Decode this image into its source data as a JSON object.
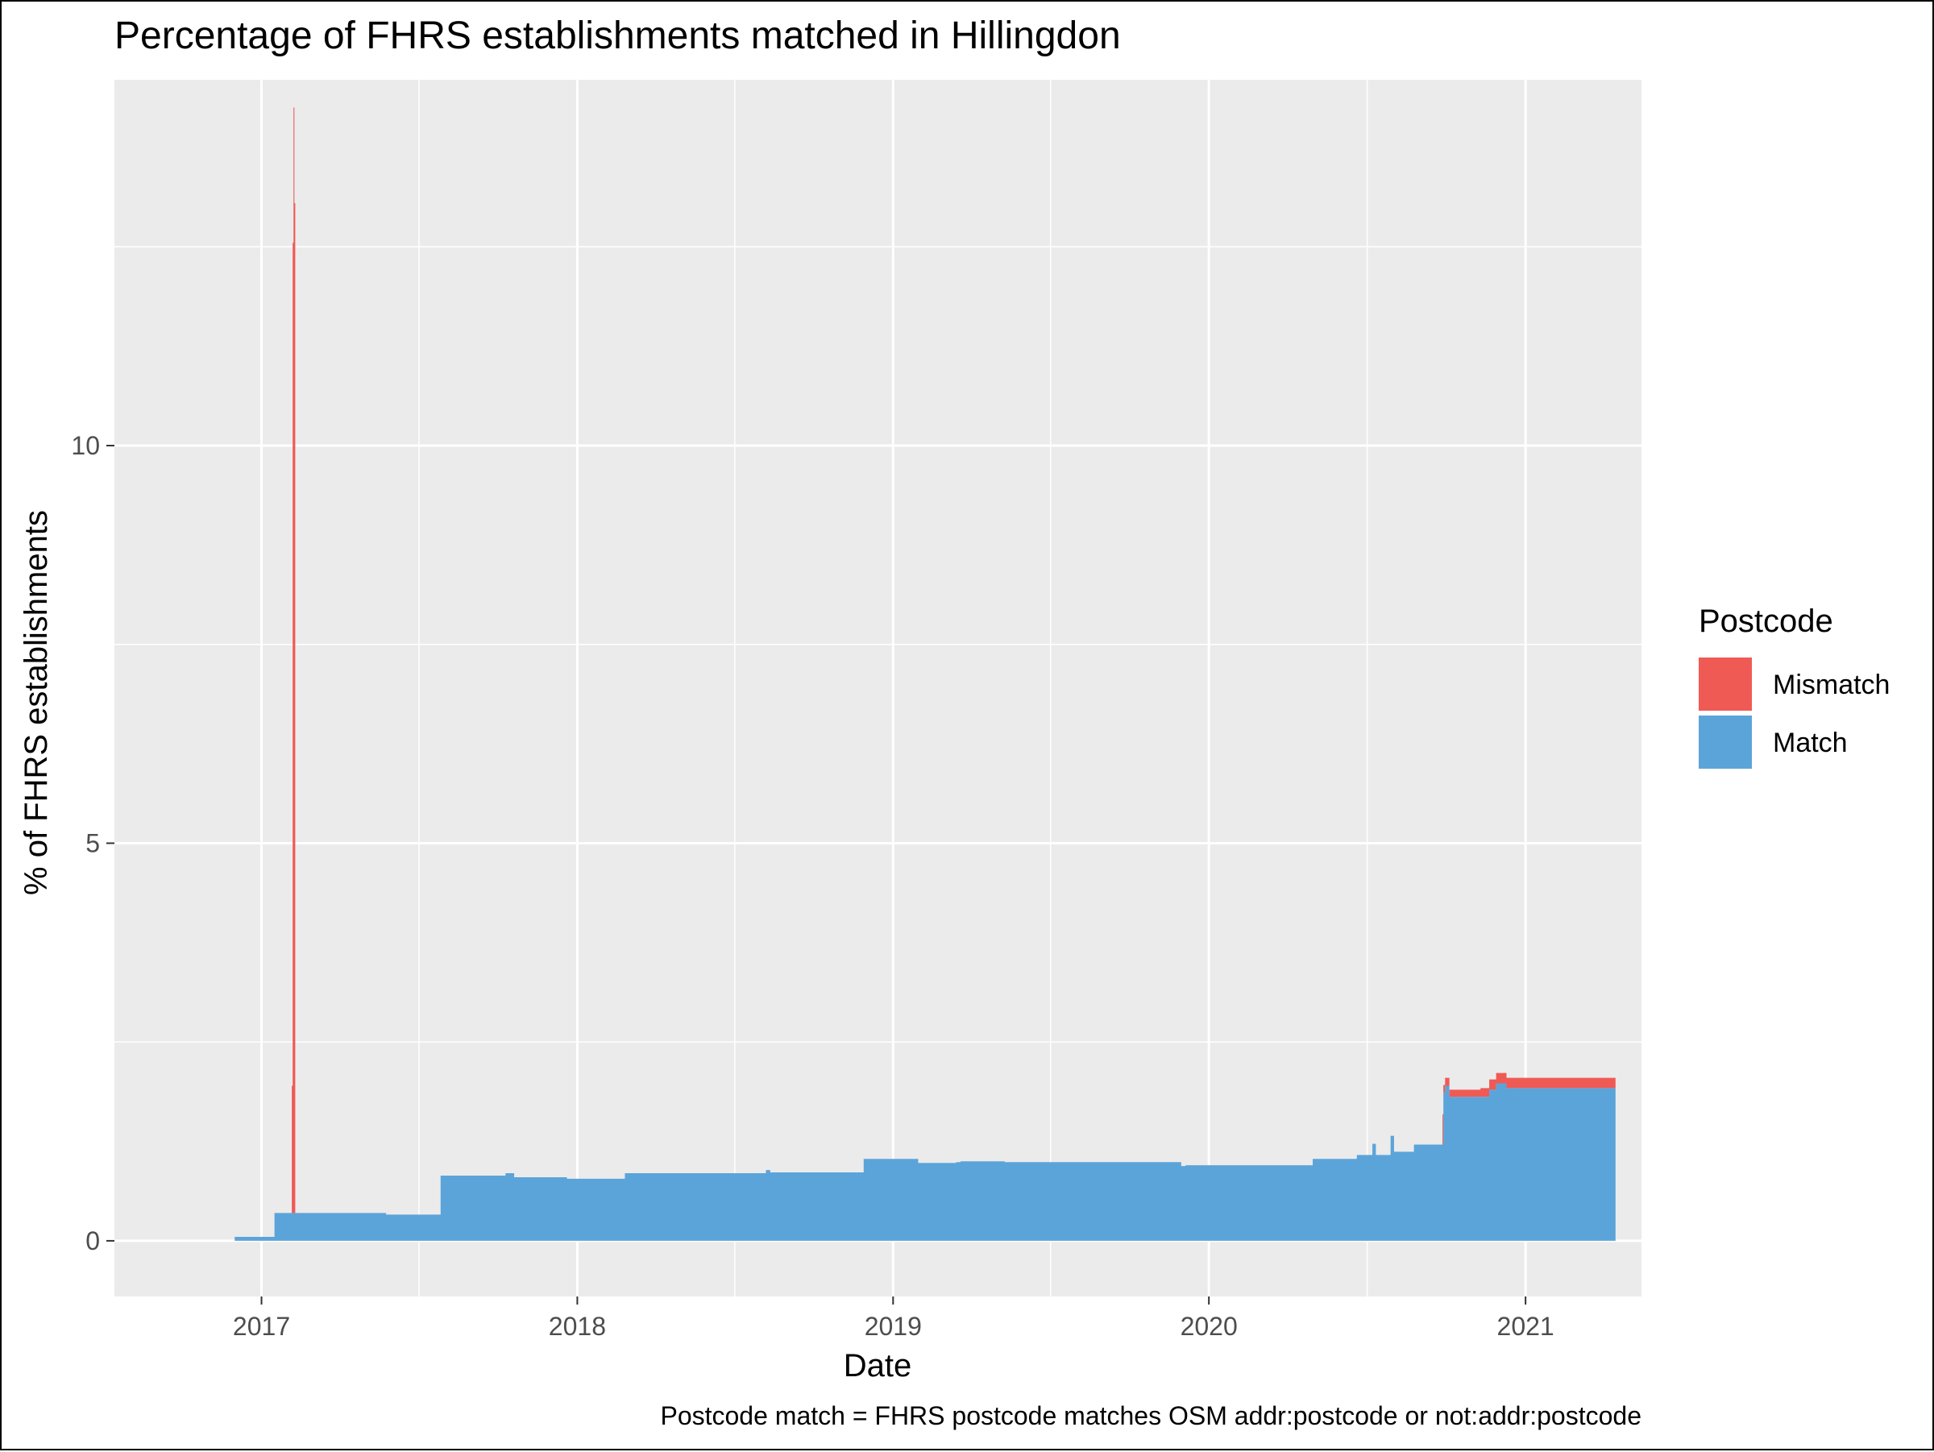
{
  "chart_data": {
    "type": "area",
    "title": "Percentage of FHRS establishments matched in Hillingdon",
    "xlabel": "Date",
    "ylabel": "% of FHRS establishments",
    "caption": "Postcode match = FHRS postcode matches OSM addr:postcode or not:addr:postcode",
    "legend_title": "Postcode",
    "legend_position": "right",
    "grid": true,
    "stacked": true,
    "x_is_date": true,
    "x_ticks": [
      "2017",
      "2018",
      "2019",
      "2020",
      "2021"
    ],
    "y_ticks": [
      0,
      5,
      10
    ],
    "xlim": [
      "2016-07-15",
      "2021-05-15"
    ],
    "ylim": [
      -0.7,
      14.6
    ],
    "series": [
      {
        "name": "Match",
        "color": "#5BA4D9",
        "points": [
          [
            "2016-12-01",
            0.05
          ],
          [
            "2017-01-10",
            0.05
          ],
          [
            "2017-01-15",
            0.05
          ],
          [
            "2017-01-16",
            0.35
          ],
          [
            "2017-05-20",
            0.35
          ],
          [
            "2017-05-25",
            0.33
          ],
          [
            "2017-07-25",
            0.33
          ],
          [
            "2017-07-27",
            0.82
          ],
          [
            "2017-09-20",
            0.82
          ],
          [
            "2017-10-10",
            0.85
          ],
          [
            "2017-10-20",
            0.8
          ],
          [
            "2017-12-15",
            0.8
          ],
          [
            "2017-12-20",
            0.78
          ],
          [
            "2018-02-20",
            0.78
          ],
          [
            "2018-02-25",
            0.85
          ],
          [
            "2018-08-05",
            0.85
          ],
          [
            "2018-08-07",
            0.89
          ],
          [
            "2018-08-12",
            0.86
          ],
          [
            "2018-11-25",
            0.86
          ],
          [
            "2018-11-28",
            1.03
          ],
          [
            "2019-01-25",
            1.03
          ],
          [
            "2019-01-30",
            0.98
          ],
          [
            "2019-03-15",
            0.99
          ],
          [
            "2019-03-20",
            1.0
          ],
          [
            "2019-05-10",
            0.99
          ],
          [
            "2019-11-30",
            0.94
          ],
          [
            "2019-12-05",
            0.95
          ],
          [
            "2020-04-25",
            0.95
          ],
          [
            "2020-04-30",
            1.03
          ],
          [
            "2020-06-15",
            1.03
          ],
          [
            "2020-06-20",
            1.08
          ],
          [
            "2020-07-05",
            1.08
          ],
          [
            "2020-07-08",
            1.22
          ],
          [
            "2020-07-12",
            1.08
          ],
          [
            "2020-07-25",
            1.08
          ],
          [
            "2020-07-29",
            1.32
          ],
          [
            "2020-08-02",
            1.12
          ],
          [
            "2020-08-20",
            1.12
          ],
          [
            "2020-08-25",
            1.21
          ],
          [
            "2020-09-25",
            1.21
          ],
          [
            "2020-09-28",
            1.86
          ],
          [
            "2020-09-30",
            1.95
          ],
          [
            "2020-10-05",
            1.81
          ],
          [
            "2020-11-10",
            1.81
          ],
          [
            "2020-11-20",
            1.9
          ],
          [
            "2020-11-28",
            1.98
          ],
          [
            "2020-12-10",
            1.92
          ],
          [
            "2021-04-15",
            1.9
          ]
        ]
      },
      {
        "name": "Mismatch",
        "color": "#F05A55",
        "points": [
          [
            "2016-12-01",
            0.0
          ],
          [
            "2017-02-04",
            0.0
          ],
          [
            "2017-02-05",
            1.6
          ],
          [
            "2017-02-06",
            12.2
          ],
          [
            "2017-02-07",
            13.9
          ],
          [
            "2017-02-08",
            12.7
          ],
          [
            "2017-02-09",
            0.0
          ],
          [
            "2020-09-25",
            0.0
          ],
          [
            "2020-09-27",
            0.38
          ],
          [
            "2020-09-28",
            0.1
          ],
          [
            "2020-10-05",
            0.09
          ],
          [
            "2020-11-10",
            0.11
          ],
          [
            "2020-11-20",
            0.13
          ],
          [
            "2020-11-28",
            0.13
          ],
          [
            "2020-12-10",
            0.13
          ],
          [
            "2021-04-15",
            0.12
          ]
        ]
      }
    ]
  }
}
